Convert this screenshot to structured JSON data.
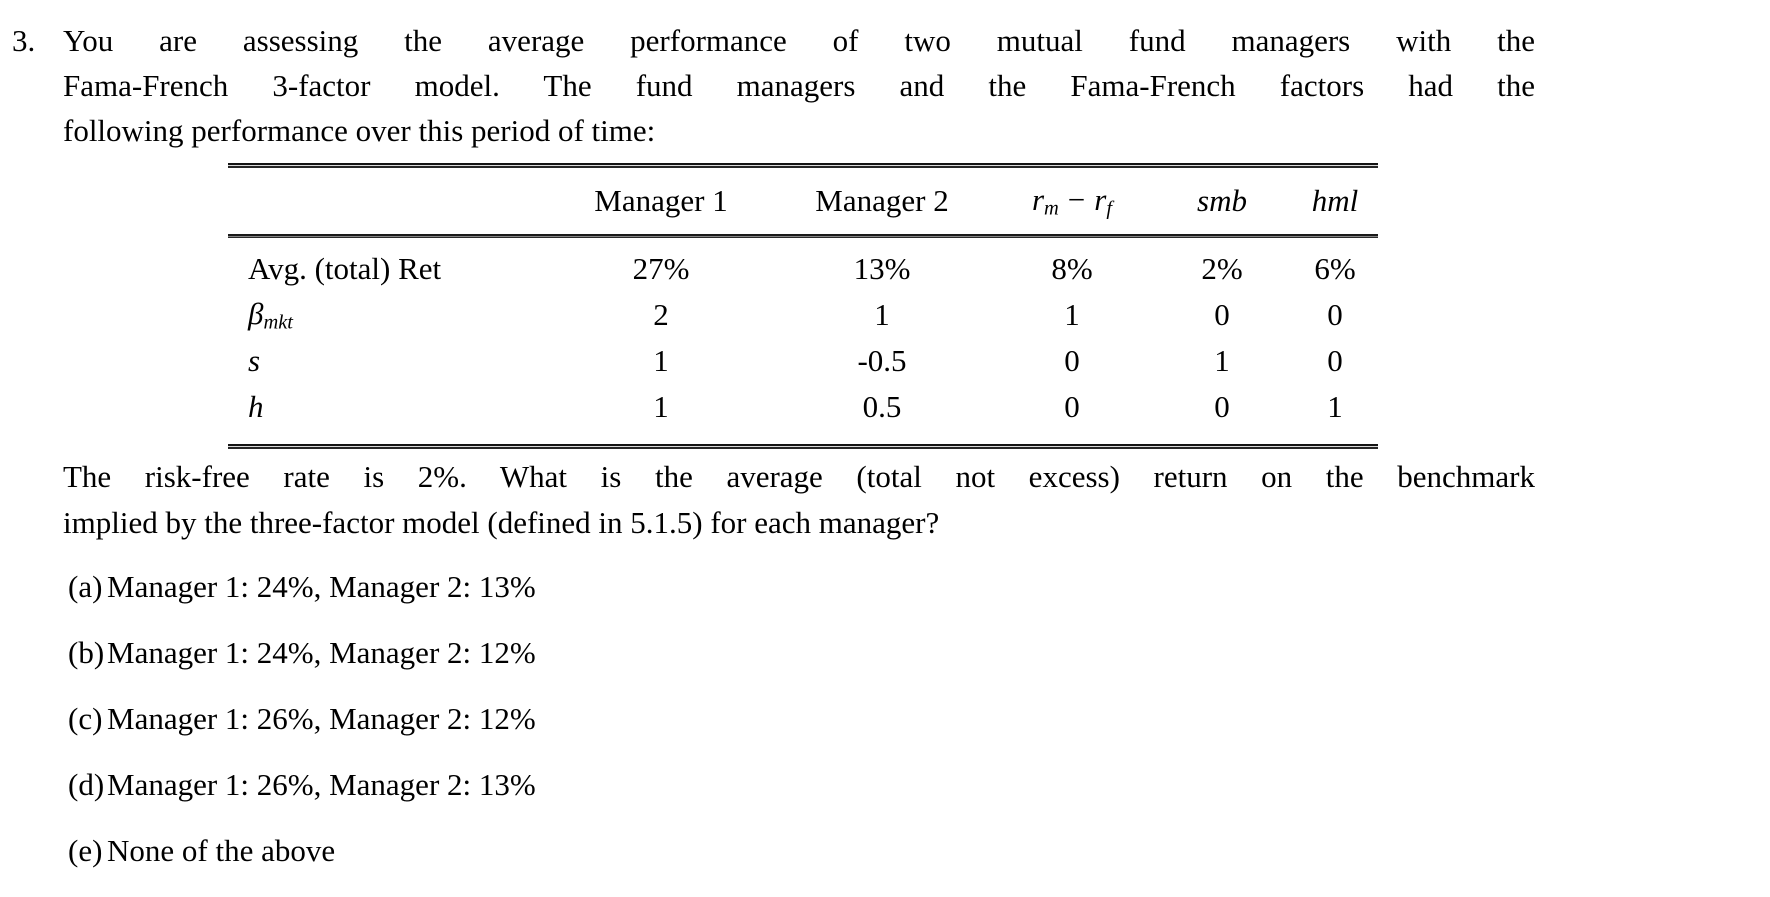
{
  "colors": {
    "background": "#ffffff",
    "text": "#000000",
    "table_rule": "#1a1a1a"
  },
  "question": {
    "number": "3.",
    "lines": [
      "You are assessing the average performance of two mutual fund managers with the",
      "Fama-French 3-factor model. The fund managers and the Fama-French factors had the",
      "following performance over this period of time:"
    ]
  },
  "table": {
    "headers": {
      "manager1": "Manager 1",
      "manager2": "Manager 2",
      "market_factor": {
        "r1": "r",
        "sub1": "m",
        "minus": "−",
        "r2": "r",
        "sub2": "f"
      },
      "smb": "smb",
      "hml": "hml"
    },
    "rows": [
      {
        "label": "Avg. (total) Ret",
        "label_sub": "",
        "values": [
          "27%",
          "13%",
          "8%",
          "2%",
          "6%"
        ]
      },
      {
        "label": "β",
        "label_sub": "mkt",
        "values": [
          "2",
          "1",
          "1",
          "0",
          "0"
        ]
      },
      {
        "label": "s",
        "label_sub": "",
        "values": [
          "1",
          "-0.5",
          "0",
          "1",
          "0"
        ]
      },
      {
        "label": "h",
        "label_sub": "",
        "values": [
          "1",
          "0.5",
          "0",
          "0",
          "1"
        ]
      }
    ]
  },
  "followup": {
    "lines": [
      "The risk-free rate is 2%. What is the average (total not excess) return on the benchmark",
      "implied by the three-factor model (defined in 5.1.5) for each manager?"
    ]
  },
  "options": [
    {
      "label": "(a)",
      "text": "Manager 1: 24%, Manager 2: 13%"
    },
    {
      "label": "(b)",
      "text": "Manager 1: 24%, Manager 2: 12%"
    },
    {
      "label": "(c)",
      "text": "Manager 1: 26%, Manager 2: 12%"
    },
    {
      "label": "(d)",
      "text": "Manager 1: 26%, Manager 2: 13%"
    },
    {
      "label": "(e)",
      "text": "None of the above"
    }
  ]
}
